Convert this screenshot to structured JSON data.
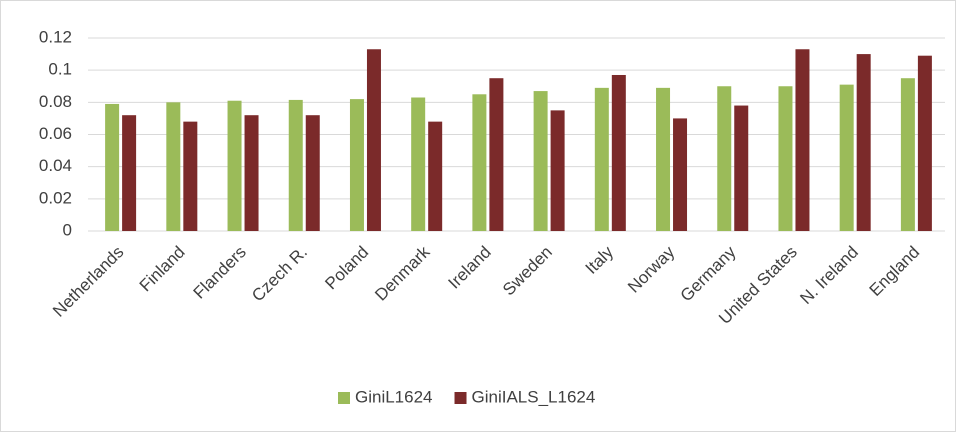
{
  "chart_data": {
    "type": "bar",
    "categories": [
      "Netherlands",
      "Finland",
      "Flanders",
      "Czech R.",
      "Poland",
      "Denmark",
      "Ireland",
      "Sweden",
      "Italy",
      "Norway",
      "Germany",
      "United States",
      "N. Ireland",
      "England"
    ],
    "series": [
      {
        "name": "GiniL1624",
        "color": "#9bbb59",
        "values": [
          0.079,
          0.08,
          0.081,
          0.0815,
          0.082,
          0.083,
          0.085,
          0.087,
          0.089,
          0.089,
          0.09,
          0.09,
          0.091,
          0.095
        ]
      },
      {
        "name": "GiniIALS_L1624",
        "color": "#7b2a2a",
        "values": [
          0.072,
          0.068,
          0.072,
          0.072,
          0.113,
          0.068,
          0.095,
          0.075,
          0.097,
          0.07,
          0.078,
          0.113,
          0.11,
          0.109
        ]
      }
    ],
    "ylim": [
      0,
      0.12
    ],
    "yticks": [
      0,
      0.02,
      0.04,
      0.06,
      0.08,
      0.1,
      0.12
    ],
    "grid": true,
    "legend": "bottom"
  }
}
